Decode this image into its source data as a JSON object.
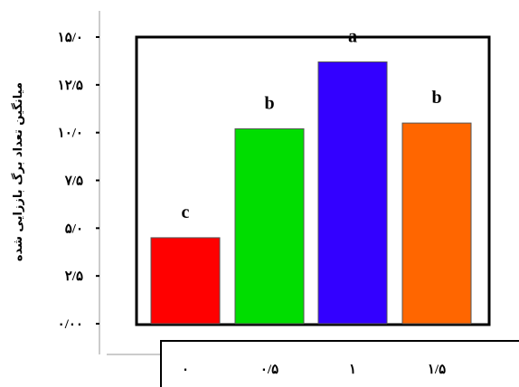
{
  "chart_data": {
    "type": "bar",
    "categories": [
      "۰",
      "۰/۵",
      "۱",
      "۱/۵"
    ],
    "values": [
      4.5,
      10.2,
      13.7,
      10.5
    ],
    "letters": [
      "c",
      "b",
      "a",
      "b"
    ],
    "colors": [
      "#ff0000",
      "#00dd00",
      "#3300ff",
      "#ff6600"
    ],
    "ylabel": "میانگین تعداد برگ باززایی شده",
    "xlabel": "",
    "ylim": [
      0,
      15
    ],
    "yticks": [
      0,
      2.5,
      5,
      7.5,
      10,
      12.5,
      15
    ],
    "ytick_labels": [
      "۰/۰۰",
      "۲/۵",
      "۵/۰",
      "۷/۵",
      "۱۰/۰",
      "۱۲/۵",
      "۱۵/۰"
    ],
    "grid": false,
    "legend": "none"
  }
}
